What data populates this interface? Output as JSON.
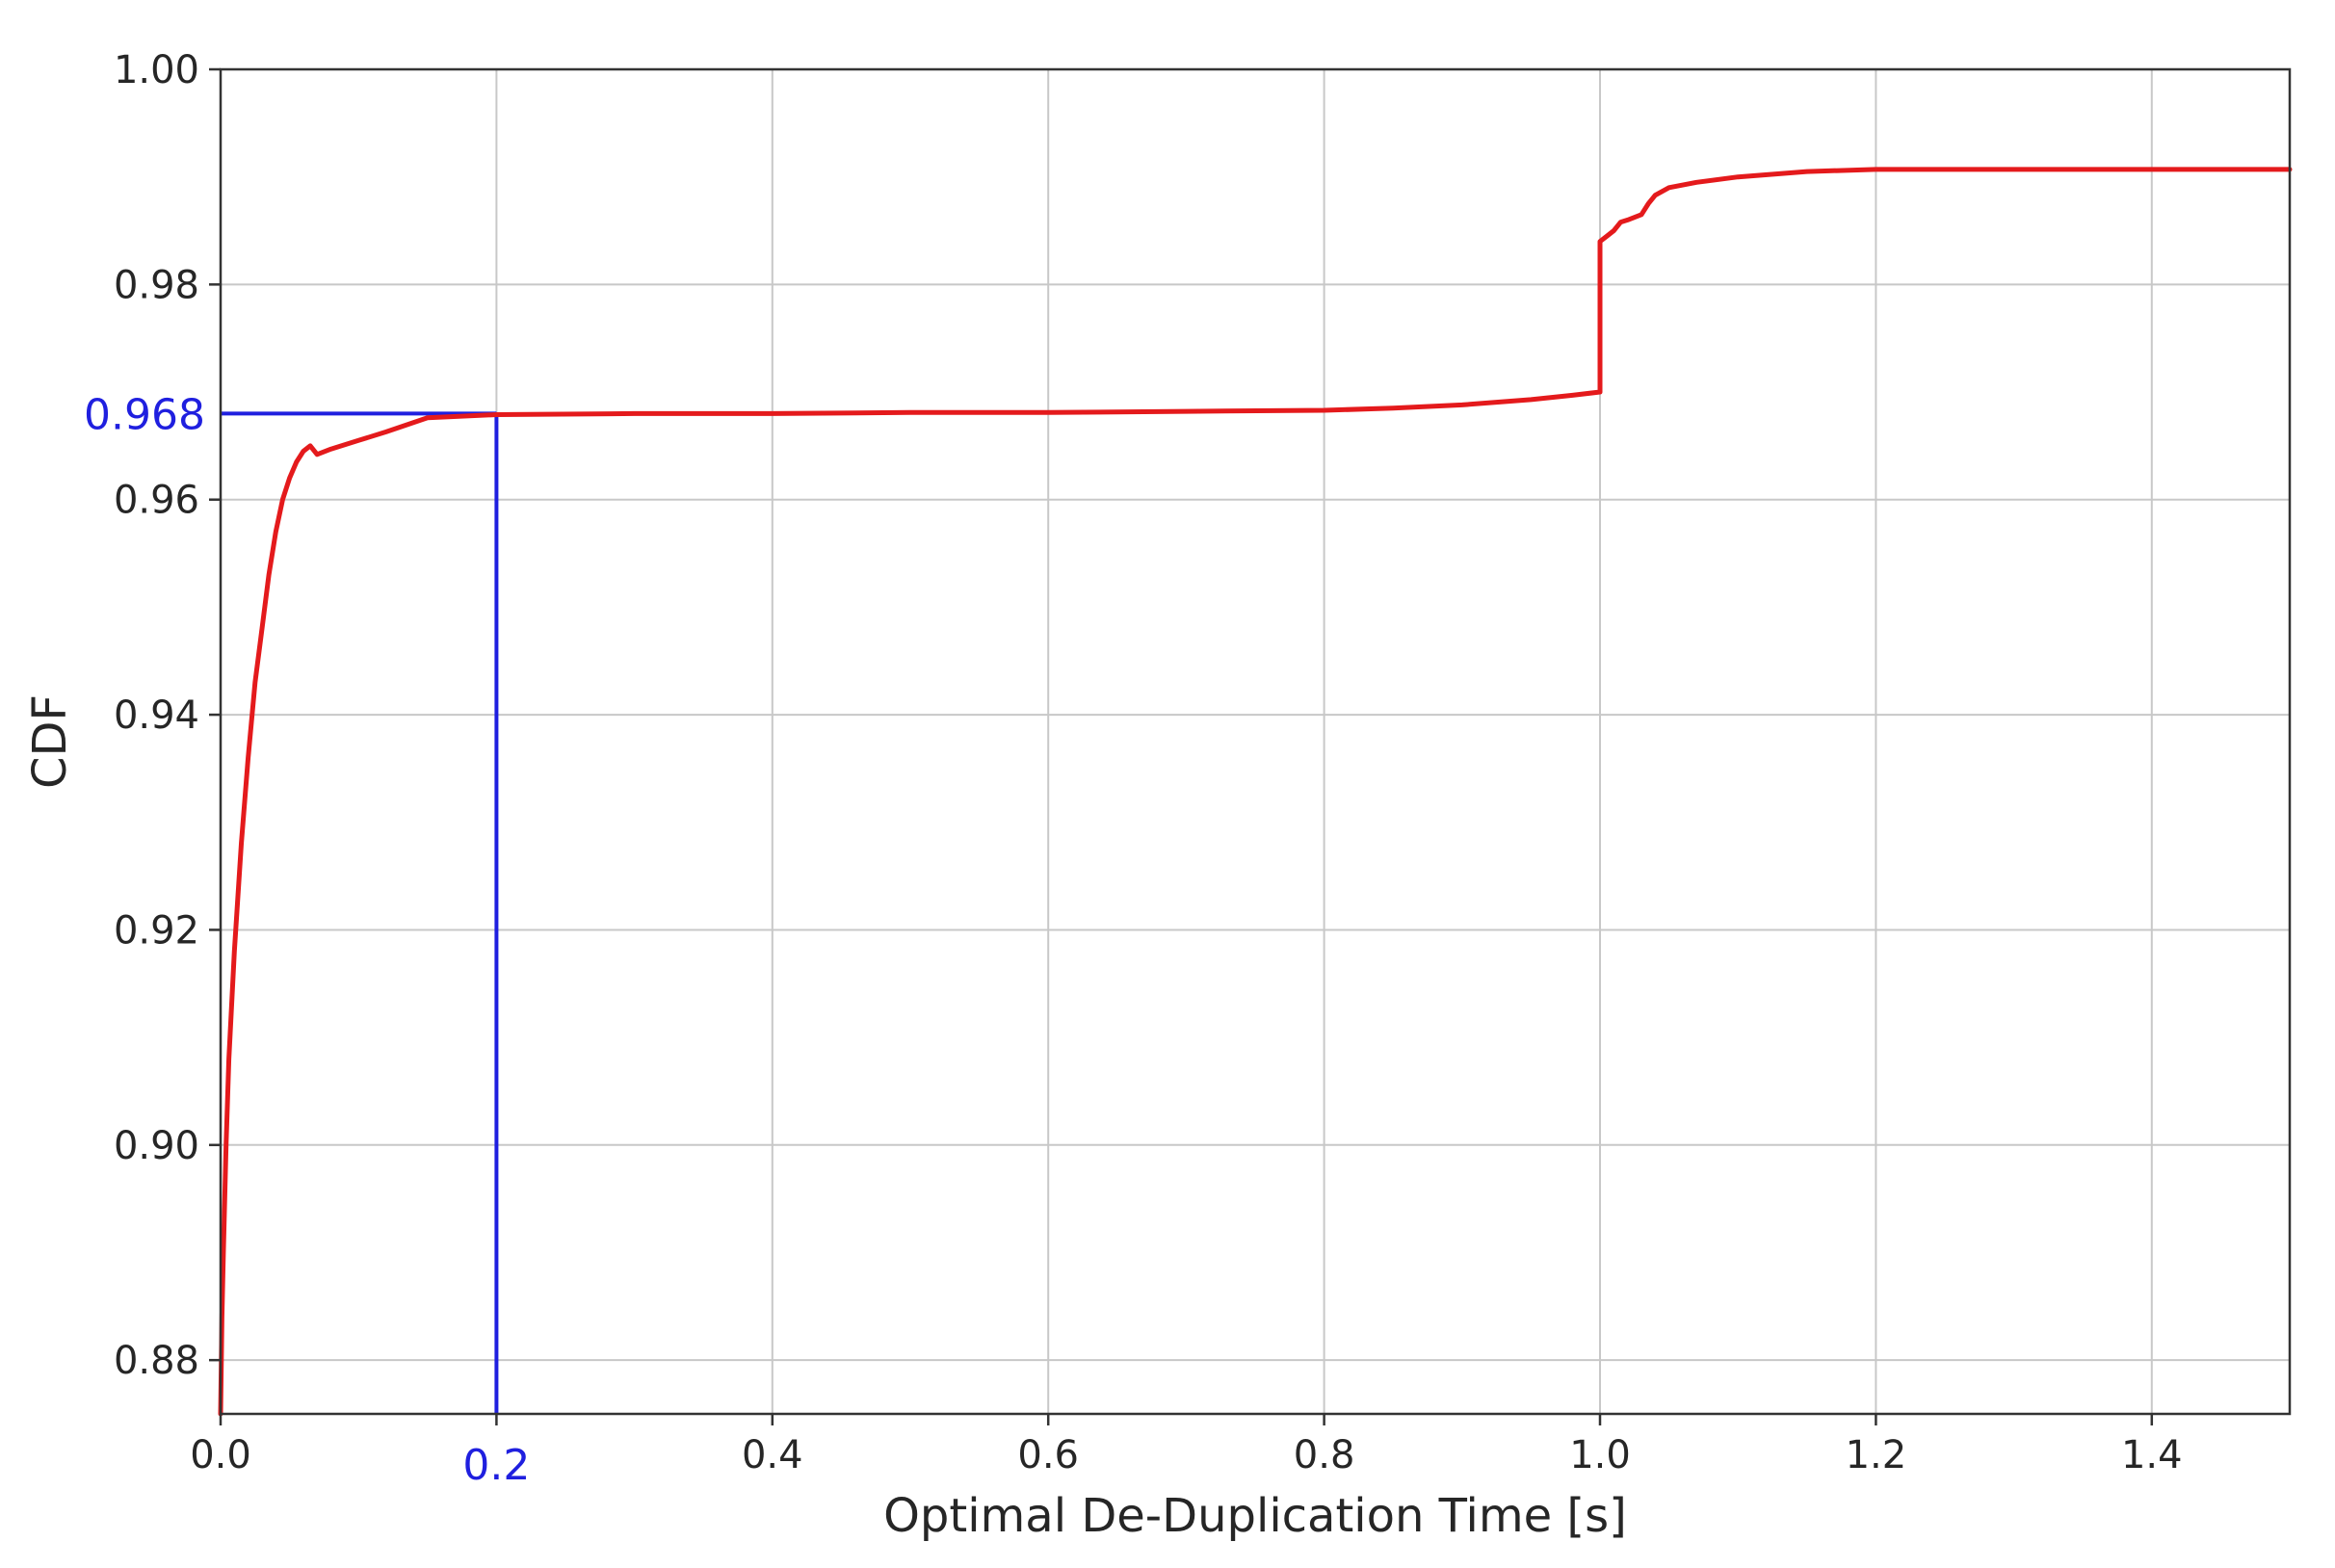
{
  "chart_data": {
    "type": "line",
    "title": "",
    "xlabel": "Optimal De-Duplication Time [s]",
    "ylabel": "CDF",
    "xlim": [
      0.0,
      1.5
    ],
    "ylim": [
      0.875,
      1.0
    ],
    "xticks": [
      0.0,
      0.2,
      0.4,
      0.6,
      0.8,
      1.0,
      1.2,
      1.4
    ],
    "xtick_labels": [
      "0.0",
      "",
      "0.4",
      "0.6",
      "0.8",
      "1.0",
      "1.2",
      "1.4"
    ],
    "yticks": [
      0.88,
      0.9,
      0.92,
      0.94,
      0.96,
      0.98,
      1.0
    ],
    "ytick_labels": [
      "0.88",
      "0.90",
      "0.92",
      "0.94",
      "0.96",
      "0.98",
      "1.00"
    ],
    "grid": true,
    "legend": "none",
    "series": [
      {
        "color": "#e41a1c",
        "x": [
          0.0,
          0.001,
          0.002,
          0.004,
          0.006,
          0.01,
          0.015,
          0.02,
          0.025,
          0.03,
          0.035,
          0.04,
          0.045,
          0.05,
          0.055,
          0.06,
          0.065,
          0.07,
          0.08,
          0.1,
          0.12,
          0.15,
          0.2,
          0.3,
          0.4,
          0.5,
          0.6,
          0.7,
          0.8,
          0.85,
          0.9,
          0.95,
          0.98,
          1.0,
          1.0,
          1.005,
          1.01,
          1.015,
          1.02,
          1.03,
          1.035,
          1.04,
          1.05,
          1.07,
          1.1,
          1.15,
          1.2,
          1.3,
          1.4,
          1.5
        ],
        "y": [
          0.875,
          0.884,
          0.89,
          0.9,
          0.908,
          0.918,
          0.928,
          0.936,
          0.943,
          0.948,
          0.953,
          0.957,
          0.96,
          0.962,
          0.9635,
          0.9645,
          0.965,
          0.9642,
          0.9647,
          0.9655,
          0.9663,
          0.9676,
          0.9679,
          0.968,
          0.968,
          0.9681,
          0.9681,
          0.9682,
          0.9683,
          0.9685,
          0.9688,
          0.9693,
          0.9697,
          0.97,
          0.984,
          0.9845,
          0.985,
          0.9858,
          0.986,
          0.9865,
          0.9875,
          0.9883,
          0.989,
          0.9895,
          0.99,
          0.9905,
          0.9907,
          0.9907,
          0.9907,
          0.9907
        ]
      }
    ],
    "annotations": {
      "color": "#1f1fdf",
      "x_value": 0.2,
      "y_value": 0.968,
      "x_label": "0.2",
      "y_label": "0.968"
    }
  }
}
